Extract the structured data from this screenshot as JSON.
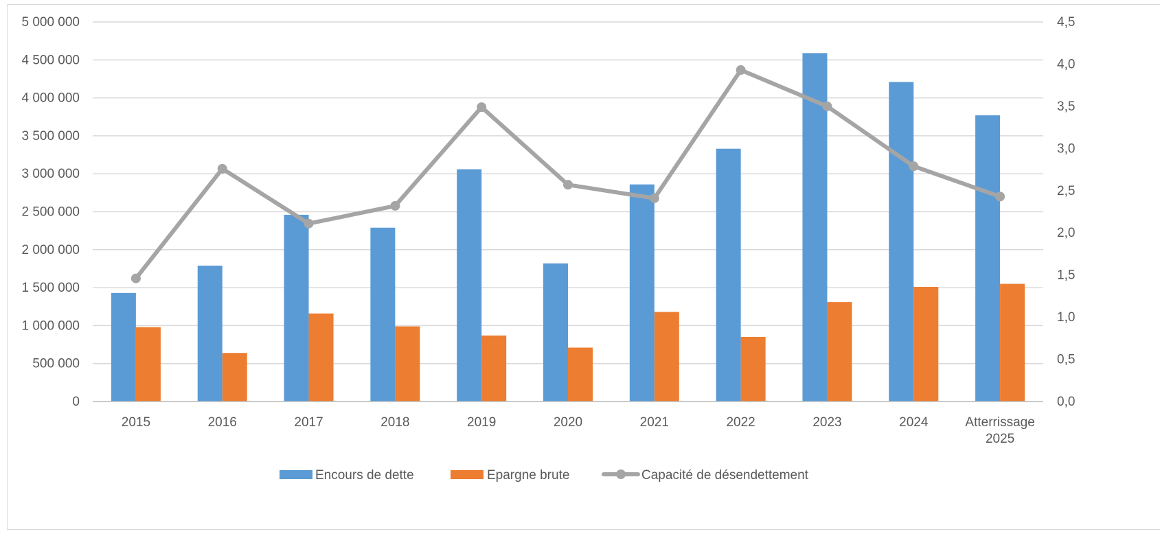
{
  "chart_data": {
    "type": "bar",
    "title": "",
    "categories": [
      "2015",
      "2016",
      "2017",
      "2018",
      "2019",
      "2020",
      "2021",
      "2022",
      "2023",
      "2024",
      "Atterrissage 2025"
    ],
    "category_lines": [
      [
        "2015"
      ],
      [
        "2016"
      ],
      [
        "2017"
      ],
      [
        "2018"
      ],
      [
        "2019"
      ],
      [
        "2020"
      ],
      [
        "2021"
      ],
      [
        "2022"
      ],
      [
        "2023"
      ],
      [
        "2024"
      ],
      [
        "Atterrissage",
        "2025"
      ]
    ],
    "series": [
      {
        "name": "Encours de dette",
        "type": "bar",
        "axis": "left",
        "color": "#5b9bd5",
        "values": [
          1430000,
          1790000,
          2460000,
          2290000,
          3060000,
          1820000,
          2860000,
          3330000,
          4590000,
          4210000,
          3770000
        ]
      },
      {
        "name": "Epargne brute",
        "type": "bar",
        "axis": "left",
        "color": "#ed7d31",
        "values": [
          980000,
          640000,
          1160000,
          990000,
          870000,
          710000,
          1180000,
          850000,
          1310000,
          1510000,
          1550000
        ]
      },
      {
        "name": "Capacité de désendettement",
        "type": "line",
        "axis": "right",
        "color": "#a5a5a5",
        "values": [
          1.46,
          2.76,
          2.11,
          2.32,
          3.49,
          2.57,
          2.41,
          3.93,
          3.5,
          2.79,
          2.43
        ]
      }
    ],
    "y_left": {
      "min": 0,
      "max": 5000000,
      "step": 500000,
      "tick_labels": [
        "0",
        "500 000",
        "1 000 000",
        "1 500 000",
        "2 000 000",
        "2 500 000",
        "3 000 000",
        "3 500 000",
        "4 000 000",
        "4 500 000",
        "5 000 000"
      ]
    },
    "y_right": {
      "min": 0,
      "max": 4.5,
      "step": 0.5,
      "tick_labels": [
        "0,0",
        "0,5",
        "1,0",
        "1,5",
        "2,0",
        "2,5",
        "3,0",
        "3,5",
        "4,0",
        "4,5"
      ]
    },
    "grid": true,
    "legend_position": "bottom"
  }
}
